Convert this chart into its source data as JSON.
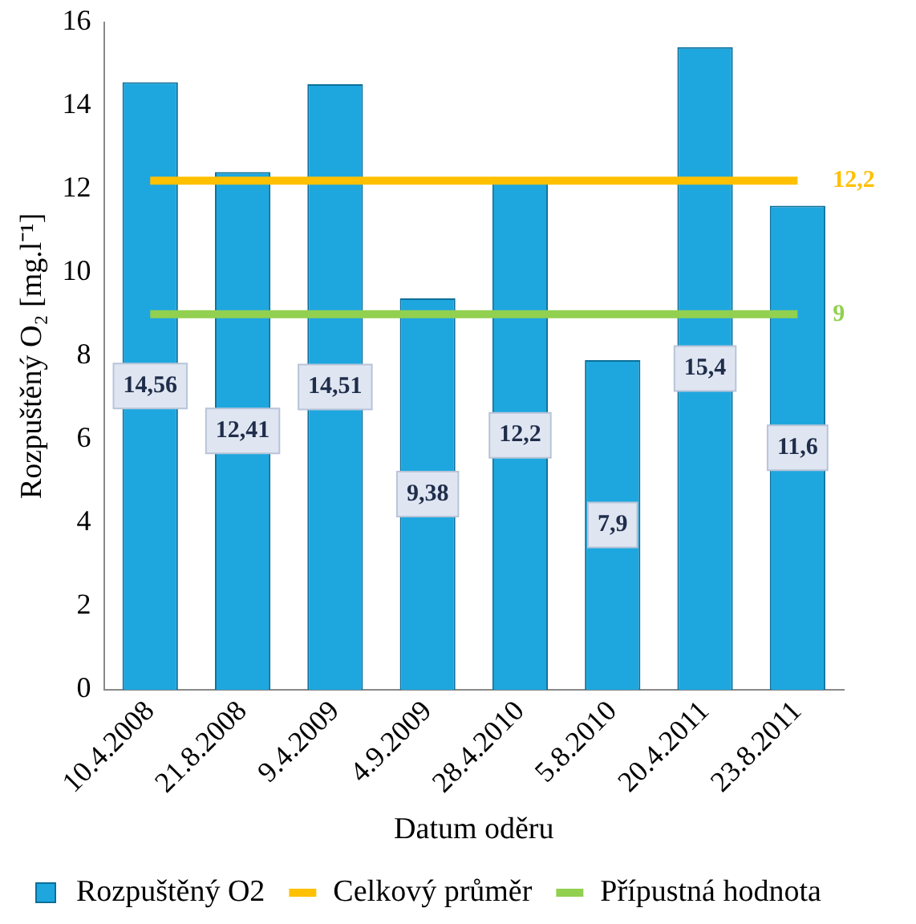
{
  "chart_data": {
    "type": "bar",
    "xlabel": "Datum oděru",
    "ylabel": "Rozpuštěný O₂ [mg.l⁻¹]",
    "categories": [
      "10.4.2008",
      "21.8.2008",
      "9.4.2009",
      "4.9.2009",
      "28.4.2010",
      "5.8.2010",
      "20.4.2011",
      "23.8.2011"
    ],
    "series": [
      {
        "name": "Rozpuštěný O2",
        "color": "#1ea7df",
        "values": [
          14.56,
          12.41,
          14.51,
          9.38,
          12.2,
          7.9,
          15.4,
          11.6
        ],
        "value_labels": [
          "14,56",
          "12,41",
          "14,51",
          "9,38",
          "12,2",
          "7,9",
          "15,4",
          "11,6"
        ]
      },
      {
        "name": "Celkový průměr",
        "type": "line",
        "color": "#ffc000",
        "values": [
          12.2,
          12.2,
          12.2,
          12.2,
          12.2,
          12.2,
          12.2,
          12.2
        ],
        "value_labels": [
          null,
          null,
          null,
          null,
          null,
          null,
          null,
          "12,2"
        ]
      },
      {
        "name": "Přípustná hodnota",
        "type": "line",
        "color": "#92d050",
        "values": [
          9,
          9,
          9,
          9,
          9,
          9,
          9,
          9
        ],
        "value_labels": [
          null,
          null,
          null,
          null,
          null,
          null,
          null,
          "9"
        ]
      }
    ],
    "ylim": [
      0,
      16
    ],
    "yticks": [
      0,
      2,
      4,
      6,
      8,
      10,
      12,
      14,
      16
    ],
    "grid": false,
    "legend": "bottom",
    "marker": "none"
  }
}
